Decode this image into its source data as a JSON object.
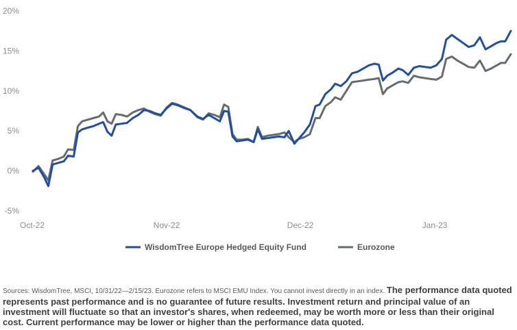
{
  "chart_data": {
    "type": "line",
    "x_labels": [
      "Oct-22",
      "Nov-22",
      "Dec-22",
      "Jan-23"
    ],
    "y_ticks": [
      "20%",
      "15%",
      "10%",
      "5%",
      "0%",
      "-5%"
    ],
    "ylim": [
      -5,
      20
    ],
    "grid": false,
    "legend_position": "bottom-center",
    "series": [
      {
        "name": "WisdomTree Europe Hedged Equity Fund",
        "color": "#1f4eaa",
        "points": [
          [
            0,
            0
          ],
          [
            4,
            0.4
          ],
          [
            8,
            -0.8
          ],
          [
            11,
            -1.9
          ],
          [
            14,
            0.8
          ],
          [
            18,
            1.0
          ],
          [
            22,
            1.2
          ],
          [
            25,
            1.9
          ],
          [
            29,
            1.8
          ],
          [
            32,
            4.8
          ],
          [
            35,
            5.2
          ],
          [
            39,
            5.4
          ],
          [
            43,
            5.6
          ],
          [
            47,
            5.9
          ],
          [
            50,
            6.1
          ],
          [
            53,
            4.9
          ],
          [
            56,
            4.4
          ],
          [
            59,
            5.8
          ],
          [
            63,
            5.9
          ],
          [
            67,
            6.0
          ],
          [
            71,
            6.6
          ],
          [
            75,
            7.0
          ],
          [
            79,
            7.6
          ],
          [
            83,
            7.5
          ],
          [
            87,
            7.2
          ],
          [
            91,
            7.0
          ],
          [
            95,
            7.8
          ],
          [
            99,
            8.4
          ],
          [
            103,
            8.2
          ],
          [
            107,
            7.9
          ],
          [
            112,
            7.6
          ],
          [
            117,
            6.8
          ],
          [
            121,
            6.5
          ],
          [
            125,
            7.0
          ],
          [
            129,
            6.6
          ],
          [
            133,
            6.2
          ],
          [
            136,
            7.5
          ],
          [
            139,
            7.4
          ],
          [
            142,
            4.3
          ],
          [
            145,
            3.7
          ],
          [
            149,
            3.8
          ],
          [
            153,
            3.9
          ],
          [
            157,
            3.6
          ],
          [
            160,
            5.2
          ],
          [
            163,
            4.0
          ],
          [
            167,
            4.1
          ],
          [
            171,
            4.2
          ],
          [
            175,
            4.3
          ],
          [
            179,
            4.2
          ],
          [
            182,
            5.0
          ],
          [
            186,
            3.4
          ],
          [
            189,
            4.0
          ],
          [
            193,
            4.8
          ],
          [
            197,
            5.8
          ],
          [
            201,
            8.1
          ],
          [
            204,
            8.3
          ],
          [
            208,
            9.6
          ],
          [
            212,
            10.2
          ],
          [
            215,
            10.9
          ],
          [
            219,
            10.6
          ],
          [
            223,
            11.2
          ],
          [
            227,
            12.2
          ],
          [
            231,
            12.4
          ],
          [
            235,
            12.8
          ],
          [
            239,
            13.2
          ],
          [
            243,
            13.4
          ],
          [
            246,
            13.3
          ],
          [
            249,
            11.3
          ],
          [
            252,
            11.9
          ],
          [
            256,
            12.3
          ],
          [
            260,
            12.8
          ],
          [
            263,
            12.6
          ],
          [
            267,
            12.0
          ],
          [
            271,
            12.9
          ],
          [
            275,
            13.1
          ],
          [
            279,
            13.0
          ],
          [
            283,
            12.9
          ],
          [
            287,
            13.2
          ],
          [
            291,
            14.0
          ],
          [
            294,
            16.4
          ],
          [
            298,
            17.0
          ],
          [
            302,
            16.5
          ],
          [
            306,
            16.0
          ],
          [
            310,
            15.5
          ],
          [
            314,
            15.7
          ],
          [
            318,
            16.7
          ],
          [
            322,
            15.2
          ],
          [
            326,
            15.6
          ],
          [
            330,
            16.0
          ],
          [
            333,
            16.2
          ],
          [
            336,
            16.2
          ],
          [
            340,
            17.5
          ]
        ]
      },
      {
        "name": "Eurozone",
        "color": "#646b71",
        "points": [
          [
            0,
            -0.1
          ],
          [
            4,
            0.6
          ],
          [
            8,
            -0.4
          ],
          [
            11,
            -1.2
          ],
          [
            14,
            1.3
          ],
          [
            18,
            1.5
          ],
          [
            22,
            1.8
          ],
          [
            25,
            2.7
          ],
          [
            29,
            2.6
          ],
          [
            32,
            5.6
          ],
          [
            35,
            6.2
          ],
          [
            39,
            6.4
          ],
          [
            43,
            6.6
          ],
          [
            47,
            6.8
          ],
          [
            50,
            7.3
          ],
          [
            53,
            6.2
          ],
          [
            56,
            5.9
          ],
          [
            59,
            7.1
          ],
          [
            63,
            7.0
          ],
          [
            67,
            6.8
          ],
          [
            71,
            7.3
          ],
          [
            75,
            7.6
          ],
          [
            79,
            7.8
          ],
          [
            83,
            7.4
          ],
          [
            87,
            7.1
          ],
          [
            91,
            6.9
          ],
          [
            95,
            7.9
          ],
          [
            99,
            8.5
          ],
          [
            103,
            8.3
          ],
          [
            107,
            8.0
          ],
          [
            112,
            7.6
          ],
          [
            117,
            6.7
          ],
          [
            121,
            6.4
          ],
          [
            125,
            7.2
          ],
          [
            129,
            7.0
          ],
          [
            133,
            6.7
          ],
          [
            136,
            8.3
          ],
          [
            139,
            8.0
          ],
          [
            142,
            4.6
          ],
          [
            145,
            3.9
          ],
          [
            149,
            3.9
          ],
          [
            153,
            4.0
          ],
          [
            157,
            3.6
          ],
          [
            160,
            5.5
          ],
          [
            163,
            4.2
          ],
          [
            167,
            4.4
          ],
          [
            171,
            4.5
          ],
          [
            175,
            4.6
          ],
          [
            179,
            4.8
          ],
          [
            182,
            4.2
          ],
          [
            186,
            3.6
          ],
          [
            189,
            4.0
          ],
          [
            193,
            4.2
          ],
          [
            197,
            4.6
          ],
          [
            201,
            6.6
          ],
          [
            204,
            6.6
          ],
          [
            208,
            8.1
          ],
          [
            212,
            8.6
          ],
          [
            215,
            9.2
          ],
          [
            219,
            8.9
          ],
          [
            223,
            10.0
          ],
          [
            227,
            11.1
          ],
          [
            231,
            11.2
          ],
          [
            235,
            11.3
          ],
          [
            239,
            11.4
          ],
          [
            243,
            11.5
          ],
          [
            246,
            11.6
          ],
          [
            249,
            9.6
          ],
          [
            252,
            10.3
          ],
          [
            256,
            10.7
          ],
          [
            260,
            11.1
          ],
          [
            263,
            11.2
          ],
          [
            267,
            11.0
          ],
          [
            271,
            11.9
          ],
          [
            275,
            11.7
          ],
          [
            279,
            11.6
          ],
          [
            283,
            11.5
          ],
          [
            287,
            11.4
          ],
          [
            291,
            11.8
          ],
          [
            294,
            14.0
          ],
          [
            298,
            14.3
          ],
          [
            302,
            13.8
          ],
          [
            306,
            13.4
          ],
          [
            310,
            13.0
          ],
          [
            314,
            12.9
          ],
          [
            318,
            13.8
          ],
          [
            322,
            12.5
          ],
          [
            326,
            12.8
          ],
          [
            330,
            13.2
          ],
          [
            333,
            13.5
          ],
          [
            336,
            13.5
          ],
          [
            340,
            14.6
          ]
        ]
      }
    ]
  },
  "footnote": {
    "sources": "Sources: WisdomTree, MSCI, 10/31/22—2/15/23. Eurozone refers to MSCI EMU Index. You cannot invest directly in an index. ",
    "disclaimer": "The performance data quoted represents past performance and is no guarantee of future results. Investment return and principal value of an investment will fluctuate so that an investor's shares, when redeemed, may be worth more or less than their original cost. Current performance may be lower or higher than the performance data quoted."
  }
}
